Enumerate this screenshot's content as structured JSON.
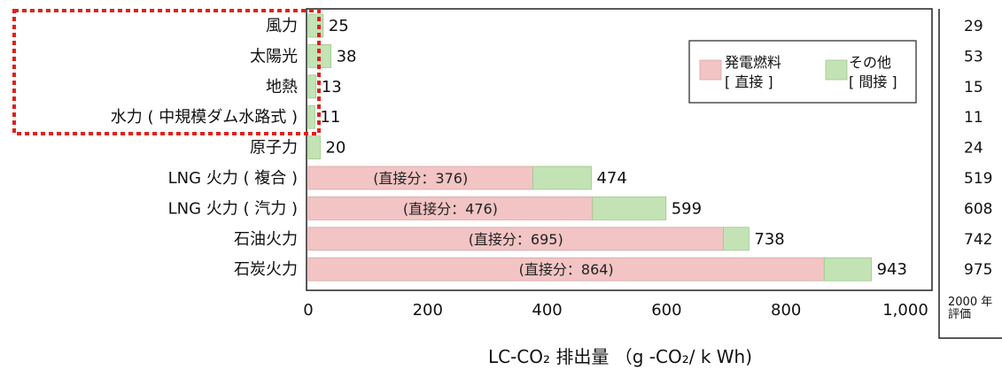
{
  "chart_data": {
    "type": "bar",
    "orientation": "horizontal",
    "stacked": true,
    "categories": [
      "風力",
      "太陽光",
      "地熱",
      "水力 ( 中規模ダム水路式 )",
      "原子力",
      "LNG 火力 ( 複合 )",
      "LNG 火力 ( 汽力 )",
      "石油火力",
      "石炭火力"
    ],
    "series": [
      {
        "name": "発電燃料 [ 直接 ]",
        "color": "#f2c4c4",
        "values": [
          0,
          0,
          0,
          0,
          0,
          376,
          476,
          695,
          864
        ]
      },
      {
        "name": "その他 [ 間接 ]",
        "color": "#c3e3b5",
        "values": [
          25,
          38,
          13,
          11,
          20,
          98,
          123,
          43,
          79
        ]
      }
    ],
    "totals": [
      "25",
      "38",
      "13",
      "11",
      "20",
      "474",
      "599",
      "738",
      "943"
    ],
    "direct_labels": [
      "",
      "",
      "",
      "",
      "",
      "(直接分：376)",
      "(直接分：476)",
      "(直接分：695)",
      "(直接分：864)"
    ],
    "xlabel": "LC-CO₂ 排出量 （g -CO₂/ k Wh)",
    "xlim": [
      0,
      1000
    ],
    "xticks": [
      {
        "value": 0,
        "label": "0"
      },
      {
        "value": 200,
        "label": "200"
      },
      {
        "value": 400,
        "label": "400"
      },
      {
        "value": 600,
        "label": "600"
      },
      {
        "value": 800,
        "label": "800"
      },
      {
        "value": 1000,
        "label": "1,000"
      }
    ],
    "legend": {
      "placement": "top-right",
      "items": [
        {
          "line1": "発電燃料",
          "line2": "[ 直接 ]",
          "color": "#f2c4c4"
        },
        {
          "line1": "その他",
          "line2": "[ 間接 ]",
          "color": "#c3e3b5"
        }
      ]
    },
    "grid": false,
    "side_column": {
      "values": [
        "29",
        "53",
        "15",
        "11",
        "24",
        "519",
        "608",
        "742",
        "975"
      ],
      "footer": [
        "2000 年",
        "評価"
      ]
    }
  },
  "highlight": {
    "style": "red dotted rectangle",
    "color": "#e0201c",
    "target_categories": [
      "風力",
      "太陽光",
      "地熱",
      "水力 ( 中規模ダム水路式 )"
    ]
  }
}
